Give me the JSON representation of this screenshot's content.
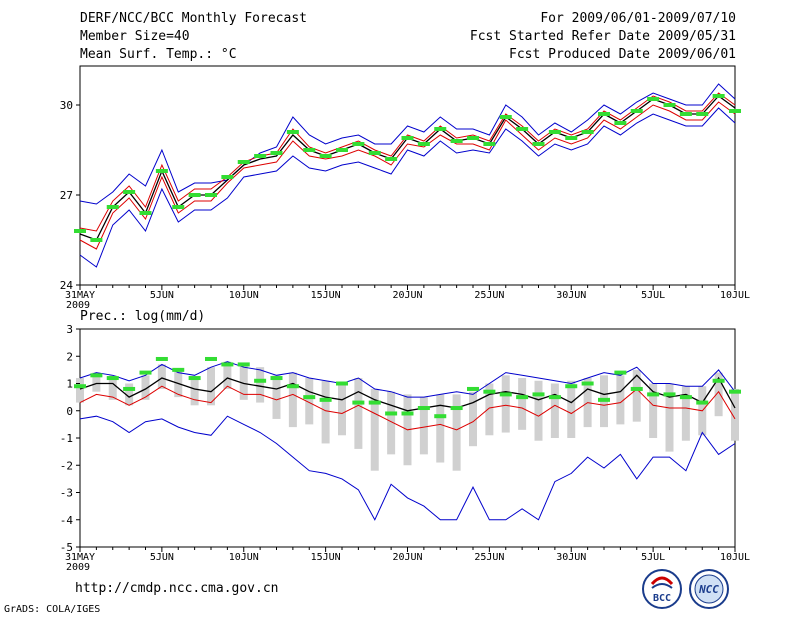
{
  "header": {
    "line1": "DERF/NCC/BCC Monthly Forecast",
    "line2": "Member Size=40",
    "line3": "Mean Surf. Temp.: °C",
    "right1": "For 2009/06/01-2009/07/10",
    "right2": "Fcst Started Refer Date 2009/05/31",
    "right3": "Fcst Produced Date 2009/06/01"
  },
  "footer": {
    "url": "http://cmdp.ncc.cma.gov.cn",
    "credit": "GrADS: COLA/IGES",
    "logo_bcc": "BCC",
    "logo_ncc": "NCC"
  },
  "colors": {
    "envelope": "#0000cc",
    "mean": "#000000",
    "spread": "#dd0000",
    "observed": "#33dd33",
    "bars": "#d0d0d0"
  },
  "chart_data": [
    {
      "type": "line",
      "title": "Mean Surf. Temp.: °C",
      "x_ticks": [
        "31MAY",
        "5JUN",
        "10JUN",
        "15JUN",
        "20JUN",
        "25JUN",
        "30JUN",
        "5JUL",
        "10JUL"
      ],
      "x_ticks_year": "2009",
      "y_ticks": [
        "24",
        "27",
        "30"
      ],
      "ylim": [
        24,
        31.3
      ],
      "n_days": 41,
      "series": [
        {
          "name": "max",
          "values": [
            26.8,
            26.7,
            27.1,
            27.7,
            27.3,
            28.5,
            27.1,
            27.4,
            27.4,
            27.5,
            28.0,
            28.4,
            28.6,
            29.6,
            29.0,
            28.7,
            28.9,
            29.0,
            28.7,
            28.7,
            29.3,
            29.1,
            29.6,
            29.2,
            29.2,
            29.0,
            30.0,
            29.6,
            29.0,
            29.4,
            29.1,
            29.5,
            30.0,
            29.7,
            30.1,
            30.4,
            30.2,
            30.0,
            30.0,
            30.7,
            30.2
          ]
        },
        {
          "name": "upper",
          "values": [
            25.9,
            25.8,
            26.8,
            27.3,
            26.6,
            28.0,
            26.8,
            27.2,
            27.2,
            27.6,
            28.1,
            28.3,
            28.4,
            29.2,
            28.6,
            28.4,
            28.6,
            28.8,
            28.5,
            28.3,
            29.0,
            28.8,
            29.3,
            28.9,
            29.0,
            28.8,
            29.7,
            29.3,
            28.8,
            29.2,
            29.0,
            29.2,
            29.8,
            29.5,
            29.9,
            30.3,
            30.1,
            29.8,
            29.8,
            30.4,
            30.0
          ]
        },
        {
          "name": "mean",
          "values": [
            25.7,
            25.5,
            26.6,
            27.1,
            26.4,
            27.8,
            26.6,
            27.0,
            27.0,
            27.5,
            28.0,
            28.2,
            28.3,
            29.0,
            28.5,
            28.3,
            28.5,
            28.7,
            28.4,
            28.2,
            28.9,
            28.7,
            29.2,
            28.8,
            28.9,
            28.7,
            29.6,
            29.2,
            28.7,
            29.1,
            28.9,
            29.1,
            29.7,
            29.4,
            29.8,
            30.2,
            30.0,
            29.7,
            29.7,
            30.3,
            29.9
          ]
        },
        {
          "name": "lower",
          "values": [
            25.5,
            25.2,
            26.4,
            26.9,
            26.2,
            27.6,
            26.4,
            26.8,
            26.8,
            27.4,
            27.9,
            28.0,
            28.1,
            28.8,
            28.3,
            28.2,
            28.3,
            28.5,
            28.3,
            28.0,
            28.7,
            28.6,
            29.0,
            28.7,
            28.7,
            28.5,
            29.5,
            29.0,
            28.5,
            28.9,
            28.7,
            28.9,
            29.5,
            29.2,
            29.6,
            30.0,
            29.8,
            29.5,
            29.5,
            30.1,
            29.7
          ]
        },
        {
          "name": "min",
          "values": [
            25.0,
            24.6,
            26.0,
            26.5,
            25.8,
            27.2,
            26.1,
            26.5,
            26.5,
            26.9,
            27.6,
            27.7,
            27.8,
            28.3,
            27.9,
            27.8,
            28.0,
            28.1,
            27.9,
            27.7,
            28.5,
            28.3,
            28.8,
            28.4,
            28.5,
            28.4,
            29.2,
            28.8,
            28.3,
            28.7,
            28.5,
            28.7,
            29.3,
            29.0,
            29.4,
            29.7,
            29.5,
            29.3,
            29.3,
            29.9,
            29.4
          ]
        },
        {
          "name": "observed",
          "values": [
            25.8,
            25.5,
            26.6,
            27.1,
            26.4,
            27.8,
            26.6,
            27.0,
            27.0,
            27.6,
            28.1,
            28.3,
            28.4,
            29.1,
            28.5,
            28.3,
            28.5,
            28.7,
            28.4,
            28.2,
            28.9,
            28.7,
            29.2,
            28.8,
            28.9,
            28.7,
            29.6,
            29.2,
            28.7,
            29.1,
            28.9,
            29.1,
            29.7,
            29.4,
            29.8,
            30.2,
            30.0,
            29.7,
            29.7,
            30.3,
            29.8
          ]
        }
      ],
      "bars": []
    },
    {
      "type": "line",
      "title": "Prec.: log(mm/d)",
      "x_ticks": [
        "31MAY",
        "5JUN",
        "10JUN",
        "15JUN",
        "20JUN",
        "25JUN",
        "30JUN",
        "5JUL",
        "10JUL"
      ],
      "x_ticks_year": "2009",
      "y_ticks": [
        "-5",
        "-4",
        "-3",
        "-2",
        "-1",
        "0",
        "1",
        "2",
        "3"
      ],
      "ylim": [
        -5,
        3
      ],
      "n_days": 41,
      "series": [
        {
          "name": "max",
          "values": [
            1.2,
            1.4,
            1.3,
            1.1,
            1.3,
            1.7,
            1.4,
            1.3,
            1.6,
            1.8,
            1.6,
            1.5,
            1.3,
            1.4,
            1.2,
            1.1,
            1.0,
            1.2,
            0.8,
            0.7,
            0.5,
            0.5,
            0.6,
            0.7,
            0.6,
            1.0,
            1.4,
            1.3,
            1.2,
            1.1,
            1.0,
            1.2,
            1.4,
            1.3,
            1.6,
            1.0,
            1.0,
            0.9,
            0.9,
            1.5,
            0.7
          ]
        },
        {
          "name": "mean",
          "values": [
            0.8,
            1.0,
            1.0,
            0.5,
            0.8,
            1.2,
            1.0,
            0.8,
            0.7,
            1.2,
            1.0,
            0.9,
            0.8,
            1.0,
            0.7,
            0.5,
            0.4,
            0.7,
            0.4,
            0.2,
            0.0,
            0.1,
            0.2,
            0.1,
            0.3,
            0.6,
            0.7,
            0.6,
            0.4,
            0.6,
            0.3,
            0.8,
            0.6,
            0.7,
            1.3,
            0.7,
            0.5,
            0.6,
            0.3,
            1.2,
            0.1
          ]
        },
        {
          "name": "spread",
          "values": [
            0.3,
            0.6,
            0.5,
            0.2,
            0.5,
            0.9,
            0.6,
            0.4,
            0.3,
            0.9,
            0.6,
            0.6,
            0.4,
            0.6,
            0.3,
            0.0,
            -0.1,
            0.2,
            -0.1,
            -0.4,
            -0.7,
            -0.6,
            -0.5,
            -0.7,
            -0.4,
            0.1,
            0.2,
            0.1,
            -0.2,
            0.2,
            -0.1,
            0.3,
            0.2,
            0.3,
            0.8,
            0.2,
            0.1,
            0.1,
            0.0,
            0.7,
            -0.3
          ]
        },
        {
          "name": "min",
          "values": [
            -0.3,
            -0.2,
            -0.4,
            -0.8,
            -0.4,
            -0.3,
            -0.6,
            -0.8,
            -0.9,
            -0.2,
            -0.5,
            -0.8,
            -1.2,
            -1.7,
            -2.2,
            -2.3,
            -2.5,
            -2.9,
            -4.0,
            -2.7,
            -3.2,
            -3.5,
            -4.0,
            -4.0,
            -2.8,
            -4.0,
            -4.0,
            -3.6,
            -4.0,
            -2.6,
            -2.3,
            -1.7,
            -2.1,
            -1.6,
            -2.5,
            -1.7,
            -1.7,
            -2.2,
            -0.8,
            -1.6,
            -1.2
          ]
        },
        {
          "name": "observed",
          "values": [
            0.9,
            1.3,
            1.2,
            0.8,
            1.4,
            1.9,
            1.5,
            1.2,
            1.9,
            1.7,
            1.7,
            1.1,
            1.2,
            0.9,
            0.5,
            0.4,
            1.0,
            0.3,
            0.3,
            -0.1,
            -0.1,
            0.1,
            -0.2,
            0.1,
            0.8,
            0.7,
            0.6,
            0.5,
            0.6,
            0.5,
            0.9,
            1.0,
            0.4,
            1.4,
            0.8,
            0.6,
            0.6,
            0.5,
            0.3,
            1.1,
            0.7
          ]
        }
      ],
      "bars": [
        [
          0.3,
          1.2
        ],
        [
          0.7,
          1.4
        ],
        [
          0.4,
          1.3
        ],
        [
          0.2,
          1.0
        ],
        [
          0.4,
          1.3
        ],
        [
          0.8,
          1.7
        ],
        [
          0.5,
          1.5
        ],
        [
          0.2,
          1.2
        ],
        [
          0.2,
          1.6
        ],
        [
          0.8,
          1.8
        ],
        [
          0.4,
          1.7
        ],
        [
          0.3,
          1.6
        ],
        [
          -0.3,
          1.3
        ],
        [
          -0.6,
          1.4
        ],
        [
          -0.5,
          1.2
        ],
        [
          -1.2,
          1.1
        ],
        [
          -0.9,
          1.0
        ],
        [
          -1.4,
          1.2
        ],
        [
          -2.2,
          0.8
        ],
        [
          -1.6,
          0.7
        ],
        [
          -2.0,
          0.6
        ],
        [
          -1.6,
          0.5
        ],
        [
          -1.9,
          0.6
        ],
        [
          -2.2,
          0.6
        ],
        [
          -1.3,
          0.7
        ],
        [
          -0.9,
          1.0
        ],
        [
          -0.8,
          1.3
        ],
        [
          -0.7,
          1.2
        ],
        [
          -1.1,
          1.1
        ],
        [
          -1.0,
          1.0
        ],
        [
          -1.0,
          1.1
        ],
        [
          -0.6,
          1.2
        ],
        [
          -0.6,
          1.3
        ],
        [
          -0.5,
          1.3
        ],
        [
          -0.4,
          1.5
        ],
        [
          -1.0,
          1.0
        ],
        [
          -1.5,
          1.0
        ],
        [
          -1.1,
          0.9
        ],
        [
          -0.9,
          0.9
        ],
        [
          -0.2,
          1.4
        ],
        [
          -1.1,
          0.8
        ]
      ]
    }
  ]
}
